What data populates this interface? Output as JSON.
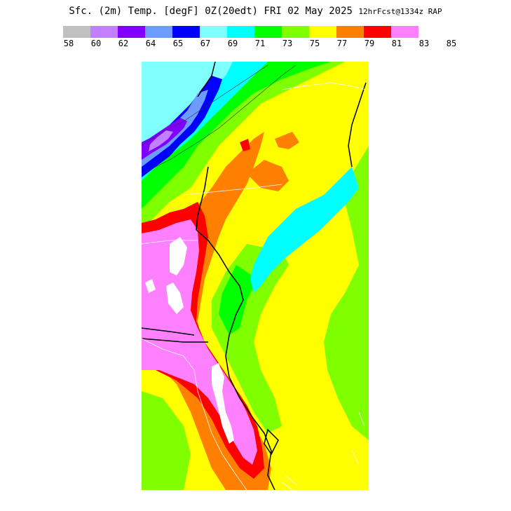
{
  "title": {
    "main": "Sfc. (2m) Temp. [degF] 0Z(20edt) FRI 02 May 2025",
    "small": "12hrFcst@1334z RAP"
  },
  "legend": {
    "colors": [
      "#c0c0c0",
      "#c080ff",
      "#8000ff",
      "#6e9bff",
      "#0000ff",
      "#80ffff",
      "#00ffff",
      "#00ff00",
      "#80ff00",
      "#ffff00",
      "#ff8000",
      "#ff0000",
      "#ff80ff"
    ],
    "ticks": [
      "58",
      "60",
      "62",
      "64",
      "65",
      "67",
      "69",
      "71",
      "73",
      "75",
      "77",
      "79",
      "81",
      "83",
      "85"
    ]
  }
}
